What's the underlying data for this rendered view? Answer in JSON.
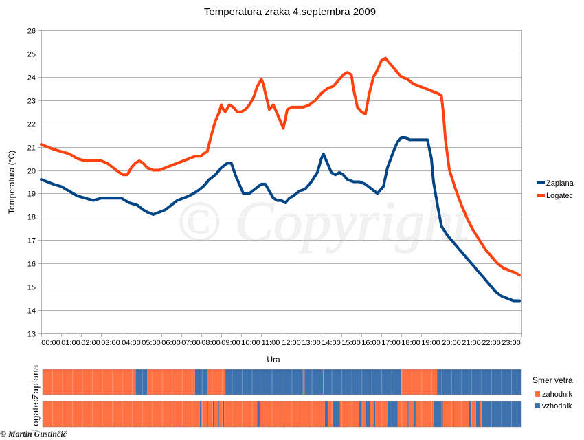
{
  "chart_data": {
    "type": "line",
    "title": "Temperatura zraka 4.septembra 2009",
    "xlabel": "Ura",
    "ylabel": "Temperatura (°C)",
    "ylim": [
      13,
      26
    ],
    "yticks": [
      13,
      14,
      15,
      16,
      17,
      18,
      19,
      20,
      21,
      22,
      23,
      24,
      25,
      26
    ],
    "xlim": [
      0,
      24
    ],
    "xticks": [
      "00:00",
      "01:00",
      "02:00",
      "03:00",
      "04:00",
      "05:00",
      "06:00",
      "07:00",
      "08:00",
      "09:00",
      "10:00",
      "11:00",
      "12:00",
      "13:00",
      "14:00",
      "15:00",
      "16:00",
      "17:00",
      "18:00",
      "19:00",
      "20:00",
      "21:00",
      "22:00",
      "23:00"
    ],
    "grid": true,
    "legend_position": "right",
    "watermark": "© Copyright",
    "series": [
      {
        "name": "Zaplana",
        "color": "#004586",
        "x": [
          0,
          0.3,
          0.6,
          1,
          1.4,
          1.8,
          2.2,
          2.6,
          3,
          3.3,
          3.6,
          4,
          4.4,
          4.8,
          5.1,
          5.3,
          5.6,
          5.9,
          6.2,
          6.5,
          6.8,
          7.1,
          7.4,
          7.8,
          8.1,
          8.4,
          8.7,
          9,
          9.3,
          9.5,
          9.7,
          9.9,
          10.1,
          10.4,
          10.7,
          11,
          11.2,
          11.4,
          11.6,
          11.8,
          12,
          12.2,
          12.4,
          12.6,
          12.9,
          13.2,
          13.5,
          13.8,
          14,
          14.1,
          14.3,
          14.5,
          14.7,
          14.9,
          15.1,
          15.3,
          15.6,
          15.9,
          16.2,
          16.5,
          16.8,
          17.1,
          17.3,
          17.6,
          17.8,
          18,
          18.2,
          18.4,
          18.7,
          19,
          19.3,
          19.5,
          19.6,
          19.8,
          20,
          20.3,
          20.6,
          20.9,
          21.2,
          21.5,
          21.8,
          22.1,
          22.4,
          22.7,
          23,
          23.3,
          23.6,
          23.9
        ],
        "y": [
          19.6,
          19.5,
          19.4,
          19.3,
          19.1,
          18.9,
          18.8,
          18.7,
          18.8,
          18.8,
          18.8,
          18.8,
          18.6,
          18.5,
          18.3,
          18.2,
          18.1,
          18.2,
          18.3,
          18.5,
          18.7,
          18.8,
          18.9,
          19.1,
          19.3,
          19.6,
          19.8,
          20.1,
          20.3,
          20.3,
          19.8,
          19.4,
          19.0,
          19.0,
          19.2,
          19.4,
          19.4,
          19.1,
          18.8,
          18.7,
          18.7,
          18.6,
          18.8,
          18.9,
          19.1,
          19.2,
          19.5,
          19.9,
          20.5,
          20.7,
          20.3,
          19.9,
          19.8,
          19.9,
          19.8,
          19.6,
          19.5,
          19.5,
          19.4,
          19.2,
          19.0,
          19.3,
          20.1,
          20.8,
          21.2,
          21.4,
          21.4,
          21.3,
          21.3,
          21.3,
          21.3,
          20.5,
          19.5,
          18.5,
          17.6,
          17.2,
          16.9,
          16.6,
          16.3,
          16.0,
          15.7,
          15.4,
          15.1,
          14.8,
          14.6,
          14.5,
          14.4,
          14.4
        ]
      },
      {
        "name": "Logatec",
        "color": "#ff420e",
        "x": [
          0,
          0.3,
          0.6,
          1,
          1.4,
          1.8,
          2.2,
          2.6,
          3,
          3.3,
          3.6,
          3.9,
          4.1,
          4.3,
          4.5,
          4.7,
          4.9,
          5.1,
          5.3,
          5.6,
          5.9,
          6.2,
          6.5,
          6.8,
          7.1,
          7.4,
          7.7,
          8,
          8.1,
          8.3,
          8.5,
          8.7,
          8.9,
          9,
          9.1,
          9.2,
          9.4,
          9.6,
          9.8,
          10,
          10.2,
          10.4,
          10.6,
          10.8,
          11,
          11.1,
          11.2,
          11.4,
          11.6,
          11.8,
          12,
          12.1,
          12.3,
          12.5,
          12.8,
          13.1,
          13.4,
          13.7,
          14,
          14.3,
          14.6,
          14.9,
          15.1,
          15.3,
          15.5,
          15.6,
          15.8,
          16,
          16.2,
          16.4,
          16.6,
          16.8,
          17,
          17.2,
          17.4,
          17.6,
          17.8,
          18,
          18.3,
          18.6,
          18.9,
          19.2,
          19.5,
          19.8,
          20,
          20.1,
          20.2,
          20.4,
          20.7,
          21,
          21.3,
          21.6,
          21.9,
          22.2,
          22.5,
          22.8,
          23.1,
          23.4,
          23.7,
          23.9
        ],
        "y": [
          21.1,
          21.0,
          20.9,
          20.8,
          20.7,
          20.5,
          20.4,
          20.4,
          20.4,
          20.3,
          20.1,
          19.9,
          19.8,
          19.8,
          20.1,
          20.3,
          20.4,
          20.3,
          20.1,
          20.0,
          20.0,
          20.1,
          20.2,
          20.3,
          20.4,
          20.5,
          20.6,
          20.6,
          20.7,
          20.8,
          21.5,
          22.1,
          22.5,
          22.8,
          22.6,
          22.5,
          22.8,
          22.7,
          22.5,
          22.5,
          22.6,
          22.8,
          23.1,
          23.6,
          23.9,
          23.7,
          23.3,
          22.6,
          22.8,
          22.4,
          22.0,
          21.8,
          22.6,
          22.7,
          22.7,
          22.7,
          22.8,
          23.0,
          23.3,
          23.5,
          23.6,
          23.9,
          24.1,
          24.2,
          24.1,
          23.5,
          22.7,
          22.5,
          22.4,
          23.3,
          24.0,
          24.3,
          24.7,
          24.8,
          24.6,
          24.4,
          24.2,
          24.0,
          23.9,
          23.7,
          23.6,
          23.5,
          23.4,
          23.3,
          23.2,
          22.4,
          21.3,
          20.0,
          19.2,
          18.5,
          17.9,
          17.4,
          17.0,
          16.6,
          16.3,
          16.0,
          15.8,
          15.7,
          15.6,
          15.5
        ]
      }
    ],
    "wind_panel": {
      "legend_title": "Smer vetra",
      "categories": [
        {
          "name": "zahodnik",
          "color": "#ff7043"
        },
        {
          "name": "vzhodnik",
          "color": "#3e72ae"
        }
      ],
      "rows": [
        {
          "station": "Zaplana",
          "segments": [
            {
              "from": 0,
              "to": 5.35,
              "dir": "zahodnik"
            },
            {
              "from": 5.35,
              "to": 6.0,
              "dir": "vzhodnik"
            },
            {
              "from": 6.0,
              "to": 8.75,
              "dir": "zahodnik"
            },
            {
              "from": 8.75,
              "to": 9.45,
              "dir": "vzhodnik"
            },
            {
              "from": 9.45,
              "to": 10.5,
              "dir": "zahodnik"
            },
            {
              "from": 10.5,
              "to": 14.95,
              "dir": "vzhodnik"
            },
            {
              "from": 14.95,
              "to": 15.05,
              "dir": "zahodnik"
            },
            {
              "from": 15.05,
              "to": 16.1,
              "dir": "vzhodnik"
            },
            {
              "from": 16.1,
              "to": 16.15,
              "dir": "zahodnik"
            },
            {
              "from": 16.15,
              "to": 20.6,
              "dir": "vzhodnik"
            },
            {
              "from": 20.6,
              "to": 22.65,
              "dir": "zahodnik"
            },
            {
              "from": 22.65,
              "to": 27.5,
              "dir": "vzhodnik"
            }
          ]
        },
        {
          "station": "Logatec",
          "segments": [
            {
              "from": 0,
              "to": 13.7,
              "dir": "zahodnik"
            },
            {
              "from": 13.7,
              "to": 13.75,
              "dir": "vzhodnik"
            },
            {
              "from": 13.75,
              "to": 15.6,
              "dir": "zahodnik"
            },
            {
              "from": 15.6,
              "to": 15.7,
              "dir": "vzhodnik"
            },
            {
              "from": 15.7,
              "to": 16.3,
              "dir": "zahodnik"
            },
            {
              "from": 16.3,
              "to": 16.4,
              "dir": "vzhodnik"
            },
            {
              "from": 16.4,
              "to": 16.9,
              "dir": "zahodnik"
            },
            {
              "from": 16.9,
              "to": 17.0,
              "dir": "vzhodnik"
            },
            {
              "from": 17.0,
              "to": 17.4,
              "dir": "zahodnik"
            },
            {
              "from": 17.4,
              "to": 17.5,
              "dir": "vzhodnik"
            },
            {
              "from": 17.5,
              "to": 17.9,
              "dir": "zahodnik"
            },
            {
              "from": 17.9,
              "to": 18.0,
              "dir": "vzhodnik"
            },
            {
              "from": 18.0,
              "to": 21.3,
              "dir": "zahodnik"
            },
            {
              "from": 21.3,
              "to": 21.6,
              "dir": "vzhodnik"
            },
            {
              "from": 21.6,
              "to": 28.0,
              "dir": "zahodnik"
            },
            {
              "from": 28.0,
              "to": 28.3,
              "dir": "vzhodnik"
            },
            {
              "from": 28.3,
              "to": 28.8,
              "dir": "zahodnik"
            },
            {
              "from": 28.8,
              "to": 29.5,
              "dir": "vzhodnik"
            },
            {
              "from": 29.5,
              "to": 31.4,
              "dir": "zahodnik"
            },
            {
              "from": 31.4,
              "to": 31.7,
              "dir": "vzhodnik"
            },
            {
              "from": 31.7,
              "to": 32.1,
              "dir": "zahodnik"
            },
            {
              "from": 32.1,
              "to": 32.5,
              "dir": "vzhodnik"
            },
            {
              "from": 32.5,
              "to": 32.9,
              "dir": "zahodnik"
            },
            {
              "from": 32.9,
              "to": 33.0,
              "dir": "vzhodnik"
            },
            {
              "from": 33.0,
              "to": 34.2,
              "dir": "zahodnik"
            },
            {
              "from": 34.2,
              "to": 35.2,
              "dir": "vzhodnik"
            },
            {
              "from": 35.2,
              "to": 36.2,
              "dir": "zahodnik"
            },
            {
              "from": 36.2,
              "to": 36.3,
              "dir": "vzhodnik"
            },
            {
              "from": 36.3,
              "to": 36.8,
              "dir": "zahodnik"
            },
            {
              "from": 36.8,
              "to": 37.0,
              "dir": "vzhodnik"
            },
            {
              "from": 37.0,
              "to": 38.8,
              "dir": "zahodnik"
            },
            {
              "from": 38.8,
              "to": 39.7,
              "dir": "vzhodnik"
            },
            {
              "from": 39.7,
              "to": 40.7,
              "dir": "zahodnik"
            },
            {
              "from": 40.7,
              "to": 40.8,
              "dir": "vzhodnik"
            },
            {
              "from": 40.8,
              "to": 42.3,
              "dir": "zahodnik"
            },
            {
              "from": 42.3,
              "to": 42.5,
              "dir": "vzhodnik"
            },
            {
              "from": 42.5,
              "to": 43.0,
              "dir": "zahodnik"
            },
            {
              "from": 43.0,
              "to": 43.4,
              "dir": "vzhodnik"
            },
            {
              "from": 43.4,
              "to": 43.6,
              "dir": "zahodnik"
            },
            {
              "from": 43.6,
              "to": 47.5,
              "dir": "vzhodnik"
            }
          ]
        }
      ]
    }
  },
  "footer": {
    "copyright": "© Martin Gustinčič"
  }
}
